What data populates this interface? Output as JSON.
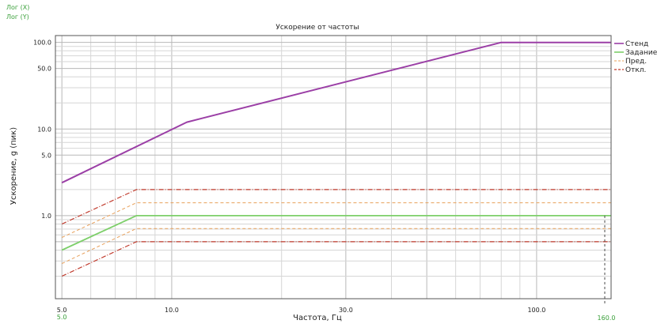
{
  "header": {
    "x_scale_label": "Лог (X)",
    "y_scale_label": "Лог (Y)"
  },
  "chart_data": {
    "type": "line",
    "title": "Ускорение от частоты",
    "xlabel": "Частота, Гц",
    "ylabel": "Ускорение, g (пик)",
    "xscale": "log",
    "yscale": "log",
    "xlim": [
      4.8,
      160
    ],
    "ylim": [
      0.11,
      120
    ],
    "grid": true,
    "legend_position": "right",
    "x_ticks": [
      {
        "value": 5,
        "label": "5.0"
      },
      {
        "value": 10,
        "label": "10.0"
      },
      {
        "value": 30,
        "label": "30.0"
      },
      {
        "value": 100,
        "label": "100.0"
      }
    ],
    "x_range_labels": {
      "min": "5.0",
      "max": "160.0"
    },
    "y_ticks": [
      {
        "value": 1,
        "label": "1.0"
      },
      {
        "value": 5,
        "label": "5.0"
      },
      {
        "value": 10,
        "label": "10.0"
      },
      {
        "value": 50,
        "label": "50.0"
      },
      {
        "value": 100,
        "label": "100.0"
      }
    ],
    "series": [
      {
        "name": "Стенд",
        "color": "#9b3fa6",
        "dash": "none",
        "width": 2,
        "x": [
          5,
          11,
          80,
          160
        ],
        "y": [
          2.4,
          12,
          100,
          100
        ]
      },
      {
        "name": "Задание",
        "color": "#7dcf6a",
        "dash": "none",
        "width": 1.8,
        "x": [
          5,
          8,
          160
        ],
        "y": [
          0.4,
          1.0,
          1.0
        ]
      },
      {
        "name": "Пред.",
        "color": "#e8a05a",
        "dash": "4,3",
        "width": 1,
        "x": [
          5,
          8,
          160
        ],
        "y": [
          0.56,
          1.41,
          1.41
        ]
      },
      {
        "name": "Пред.",
        "color": "#e8a05a",
        "dash": "4,3",
        "width": 1,
        "legend": false,
        "x": [
          5,
          8,
          160
        ],
        "y": [
          0.28,
          0.71,
          0.71
        ]
      },
      {
        "name": "Откл.",
        "color": "#c0392b",
        "dash": "6,2,1,2",
        "width": 1.2,
        "x": [
          5,
          8,
          160
        ],
        "y": [
          0.8,
          2.0,
          2.0
        ]
      },
      {
        "name": "Откл.",
        "color": "#c0392b",
        "dash": "6,2,1,2",
        "width": 1.2,
        "legend": false,
        "x": [
          5,
          8,
          160
        ],
        "y": [
          0.2,
          0.5,
          0.5
        ]
      }
    ]
  }
}
